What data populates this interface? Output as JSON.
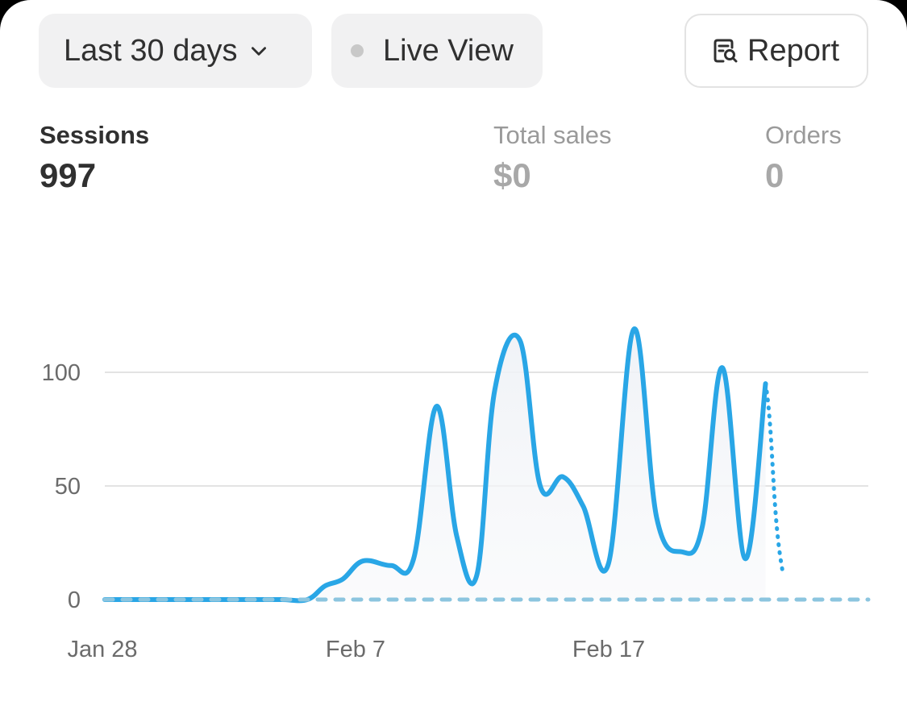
{
  "filters": {
    "date_range_label": "Last 30 days",
    "live_view_label": "Live View",
    "report_label": "Report"
  },
  "metrics": [
    {
      "label": "Sessions",
      "value": "997"
    },
    {
      "label": "Total sales",
      "value": "$0"
    },
    {
      "label": "Orders",
      "value": "0"
    }
  ],
  "colors": {
    "series_current": "#29a6e6",
    "series_previous": "#8cc5df",
    "grid": "#e3e3e3"
  },
  "chart_data": {
    "type": "line",
    "y_ticks": [
      "100",
      "50",
      "0"
    ],
    "ylim": [
      0,
      130
    ],
    "x_tick_labels": [
      {
        "label": "Jan 28",
        "day_index": 0
      },
      {
        "label": "Feb 7",
        "day_index": 10
      },
      {
        "label": "Feb 17",
        "day_index": 20
      }
    ],
    "series": [
      {
        "style": "solid",
        "points": [
          [
            0,
            0
          ],
          [
            1,
            0
          ],
          [
            2,
            0
          ],
          [
            3,
            0
          ],
          [
            4,
            0
          ],
          [
            5,
            0
          ],
          [
            6,
            0
          ],
          [
            7,
            0
          ],
          [
            8,
            0
          ],
          [
            8.7,
            6
          ],
          [
            9.4,
            9
          ],
          [
            10.2,
            17
          ],
          [
            11.3,
            15
          ],
          [
            12.2,
            18
          ],
          [
            13.1,
            85
          ],
          [
            13.9,
            28
          ],
          [
            14.7,
            11
          ],
          [
            15.4,
            92
          ],
          [
            16.4,
            114
          ],
          [
            17.2,
            50
          ],
          [
            18.1,
            54
          ],
          [
            18.9,
            41
          ],
          [
            19.9,
            16
          ],
          [
            20.9,
            119
          ],
          [
            21.8,
            36
          ],
          [
            22.8,
            21
          ],
          [
            23.6,
            32
          ],
          [
            24.4,
            102
          ],
          [
            25.3,
            18
          ],
          [
            26.1,
            95
          ]
        ]
      },
      {
        "style": "dotted",
        "points": [
          [
            26.1,
            95
          ],
          [
            26.8,
            11
          ]
        ]
      },
      {
        "style": "dashed",
        "points": [
          [
            0,
            0
          ],
          [
            30,
            0
          ]
        ]
      }
    ]
  }
}
